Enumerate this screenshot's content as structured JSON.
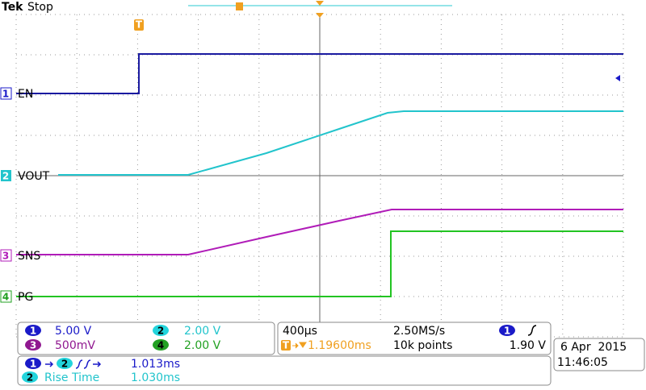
{
  "header": {
    "brand": "Tek",
    "status": "Stop"
  },
  "channels": [
    {
      "number": "1",
      "label": "EN",
      "scale": "5.00 V"
    },
    {
      "number": "2",
      "label": "VOUT",
      "scale": "2.00 V"
    },
    {
      "number": "3",
      "label": "SNS",
      "scale": "500mV"
    },
    {
      "number": "4",
      "label": "PG",
      "scale": "2.00 V"
    }
  ],
  "timebase": {
    "scale": "400µs",
    "sample_rate": "2.50MS/s",
    "trigger_position": "1.19600ms",
    "record_length": "10k points"
  },
  "trigger": {
    "source": "1",
    "level": "1.90 V"
  },
  "measurements": [
    {
      "source": "1",
      "target": "2",
      "value": "1.013ms"
    },
    {
      "source": "2",
      "name": "Rise Time",
      "value": "1.030ms"
    }
  ],
  "datetime": {
    "date": "6 Apr  2015",
    "time": "11:46:05"
  }
}
